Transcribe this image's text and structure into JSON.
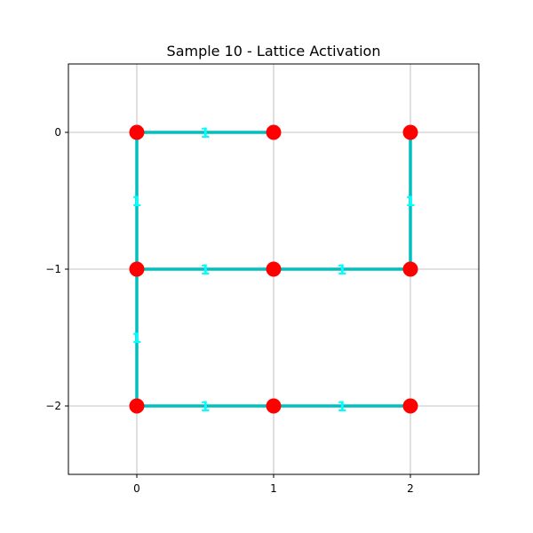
{
  "chart_data": {
    "type": "scatter",
    "title": "Sample 10 - Lattice Activation",
    "xlabel": "",
    "ylabel": "",
    "xlim": [
      -0.5,
      2.5
    ],
    "ylim": [
      -2.5,
      0.5
    ],
    "x_ticks": [
      0,
      1,
      2
    ],
    "y_ticks": [
      0,
      -1,
      -2
    ],
    "x_tick_labels": [
      "0",
      "1",
      "2"
    ],
    "y_tick_labels": [
      "0",
      "−1",
      "−2"
    ],
    "grid": true,
    "nodes": [
      {
        "x": 0,
        "y": 0
      },
      {
        "x": 1,
        "y": 0
      },
      {
        "x": 2,
        "y": 0
      },
      {
        "x": 0,
        "y": -1
      },
      {
        "x": 1,
        "y": -1
      },
      {
        "x": 2,
        "y": -1
      },
      {
        "x": 0,
        "y": -2
      },
      {
        "x": 1,
        "y": -2
      },
      {
        "x": 2,
        "y": -2
      }
    ],
    "edges": [
      {
        "from": [
          0,
          0
        ],
        "to": [
          1,
          0
        ],
        "label": "1"
      },
      {
        "from": [
          0,
          0
        ],
        "to": [
          0,
          -1
        ],
        "label": "1"
      },
      {
        "from": [
          2,
          0
        ],
        "to": [
          2,
          -1
        ],
        "label": "1"
      },
      {
        "from": [
          0,
          -1
        ],
        "to": [
          1,
          -1
        ],
        "label": "1"
      },
      {
        "from": [
          1,
          -1
        ],
        "to": [
          2,
          -1
        ],
        "label": "1"
      },
      {
        "from": [
          0,
          -1
        ],
        "to": [
          0,
          -2
        ],
        "label": "1"
      },
      {
        "from": [
          0,
          -2
        ],
        "to": [
          1,
          -2
        ],
        "label": "1"
      },
      {
        "from": [
          1,
          -2
        ],
        "to": [
          2,
          -2
        ],
        "label": "1"
      }
    ],
    "colors": {
      "node": "#ff0000",
      "edge": "#00bfbf",
      "edge_label": "#00ffff",
      "grid": "#b0b0b0"
    }
  }
}
